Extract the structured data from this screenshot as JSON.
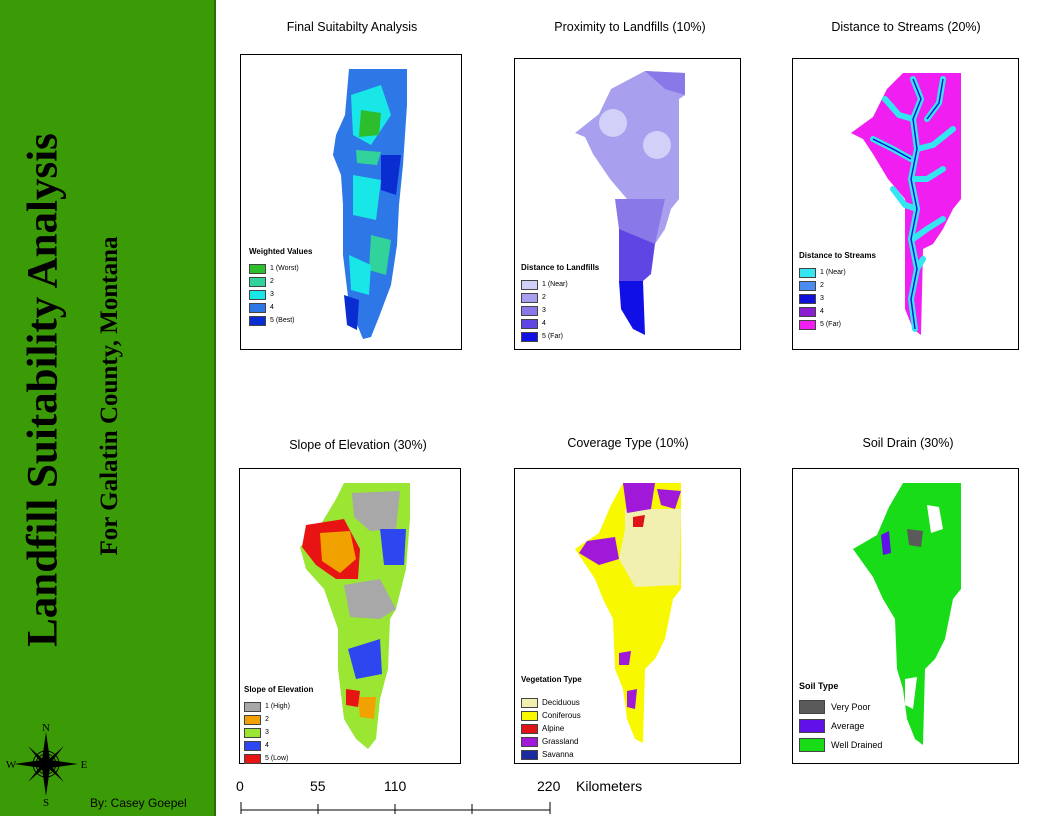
{
  "sidebar": {
    "title": "Landfill Suitability Analysis",
    "subtitle": "For Galatin County, Montana",
    "author": "By: Casey Goepel",
    "compass": {
      "n": "N",
      "s": "S",
      "e": "E",
      "w": "W"
    }
  },
  "maps": [
    {
      "title": "Final Suitabilty Analysis",
      "legend_title": "Weighted Values",
      "items": [
        {
          "label": "1 (Worst)",
          "color": "#2dbe2d"
        },
        {
          "label": "2",
          "color": "#32d29b"
        },
        {
          "label": "3",
          "color": "#19e6e6"
        },
        {
          "label": "4",
          "color": "#2d78e6"
        },
        {
          "label": "5 (Best)",
          "color": "#0a2dd2"
        }
      ]
    },
    {
      "title": "Proximity to Landfills (10%)",
      "legend_title": "Distance to Landfills",
      "items": [
        {
          "label": "1 (Near)",
          "color": "#d0d0f8"
        },
        {
          "label": "2",
          "color": "#a8a0ee"
        },
        {
          "label": "3",
          "color": "#8878e8"
        },
        {
          "label": "4",
          "color": "#5f46e4"
        },
        {
          "label": "5 (Far)",
          "color": "#1010e6"
        }
      ]
    },
    {
      "title": "Distance to Streams (20%)",
      "legend_title": "Distance to Streams",
      "items": [
        {
          "label": "1 (Near)",
          "color": "#33e6f0"
        },
        {
          "label": "2",
          "color": "#4a8cf0"
        },
        {
          "label": "3",
          "color": "#1010d8"
        },
        {
          "label": "4",
          "color": "#8a1ed2"
        },
        {
          "label": "5 (Far)",
          "color": "#f01ef0"
        }
      ]
    },
    {
      "title": "Slope of Elevation (30%)",
      "legend_title": "Slope of Elevation",
      "items": [
        {
          "label": "1 (High)",
          "color": "#a8a8a8"
        },
        {
          "label": "2",
          "color": "#f2a200"
        },
        {
          "label": "3",
          "color": "#9ae632"
        },
        {
          "label": "4",
          "color": "#2e46f0"
        },
        {
          "label": "5 (Low)",
          "color": "#e81414"
        }
      ]
    },
    {
      "title": "Coverage Type (10%)",
      "legend_title": "Vegetation Type",
      "items": [
        {
          "label": "Deciduous",
          "color": "#f2f0b0"
        },
        {
          "label": "Coniferous",
          "color": "#f8f800"
        },
        {
          "label": "Alpine",
          "color": "#e01414"
        },
        {
          "label": "Grassland",
          "color": "#a018d8"
        },
        {
          "label": "Savanna",
          "color": "#1a2aa0"
        }
      ]
    },
    {
      "title": "Soil Drain (30%)",
      "legend_title": "Soil Type",
      "items": [
        {
          "label": "Very Poor",
          "color": "#5a5a5a"
        },
        {
          "label": "Average",
          "color": "#6010e8"
        },
        {
          "label": "Well Drained",
          "color": "#18dc18"
        }
      ]
    }
  ],
  "scale": {
    "ticks": [
      "0",
      "55",
      "110",
      "220"
    ],
    "unit": "Kilometers"
  }
}
